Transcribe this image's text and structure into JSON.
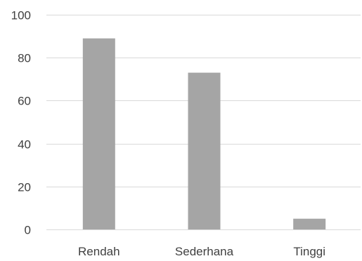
{
  "chart_data": {
    "type": "bar",
    "categories": [
      "Rendah",
      "Sederhana",
      "Tinggi"
    ],
    "values": [
      89,
      73,
      5
    ],
    "title": "",
    "xlabel": "",
    "ylabel": "",
    "ylim": [
      0,
      100
    ],
    "yticks": [
      0,
      20,
      40,
      60,
      80,
      100
    ],
    "grid": true,
    "legend": "none",
    "bar_color": "#a5a5a5",
    "grid_color": "#d9d9d9",
    "text_color": "#404040"
  }
}
